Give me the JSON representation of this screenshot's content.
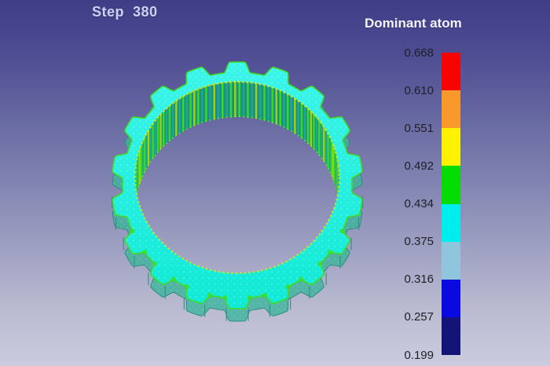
{
  "scene": {
    "step_label": "Step  380",
    "background_top_color": "#3f3d86",
    "background_bottom_color": "#cbccde"
  },
  "legend": {
    "title": "Dominant atom",
    "ticks": [
      "0.668",
      "0.610",
      "0.551",
      "0.492",
      "0.434",
      "0.375",
      "0.316",
      "0.257",
      "0.199"
    ],
    "colors": [
      "#f80400",
      "#f9992b",
      "#fef200",
      "#04dc04",
      "#00eded",
      "#8fc6de",
      "#0a0ae0",
      "#131378"
    ]
  },
  "model": {
    "description": "gear-shaped atomic ring",
    "teeth": 18,
    "top_surface_color_light": "#3df5ea",
    "top_surface_color_dark": "#0fe9d6",
    "edge_highlight_color": "#3fdd1c",
    "side_wall_color_top": "#3fa193",
    "side_wall_color_bottom": "#55b7a8",
    "side_wall_line_color": "#2e8b7f",
    "inner_wall_base_color": "#1d9084",
    "inner_wall_stripe_green": "#38dc1f",
    "inner_wall_stripe_teal": "#1fa88d",
    "inner_wall_stripe_yellowgreen": "#9ed313",
    "rim_dot_color": "#dcea08",
    "speckle_color": "#bfffef"
  }
}
